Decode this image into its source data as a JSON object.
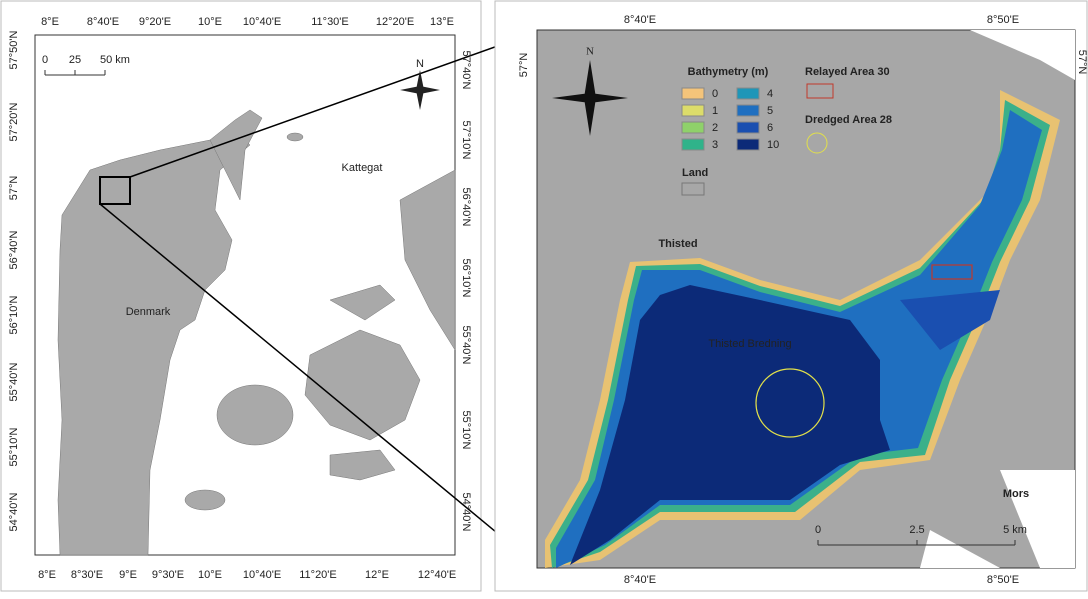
{
  "overview_map": {
    "top_labels": [
      "8°E",
      "8°40'E",
      "9°20'E",
      "10°E",
      "10°40'E",
      "11°30'E",
      "12°20'E",
      "13°E"
    ],
    "bottom_labels": [
      "8°E",
      "8°30'E",
      "9°E",
      "9°30'E",
      "10°E",
      "10°40'E",
      "11°20'E",
      "12°E",
      "12°40'E"
    ],
    "left_labels": [
      "57°50'N",
      "57°20'N",
      "57°N",
      "56°40'N",
      "56°10'N",
      "55°40'N",
      "55°10'N",
      "54°40'N"
    ],
    "right_labels": [
      "57°40'N",
      "57°10'N",
      "56°40'N",
      "56°10'N",
      "55°40'N",
      "55°10'N",
      "54°40'N"
    ],
    "scale_labels": [
      "0",
      "25",
      "50 km"
    ],
    "north": "N",
    "places": [
      "Kattegat",
      "Denmark"
    ]
  },
  "detail_map": {
    "top_labels": [
      "8°40'E",
      "8°50'E"
    ],
    "bottom_labels": [
      "8°40'E",
      "8°50'E"
    ],
    "left_labels": [
      "57°N"
    ],
    "right_labels": [
      "57°N"
    ],
    "legend": {
      "title": "Bathymetry (m)",
      "items": [
        {
          "label": "0",
          "color": "#f4c47a"
        },
        {
          "label": "1",
          "color": "#dcdc6a"
        },
        {
          "label": "2",
          "color": "#8fd16a"
        },
        {
          "label": "3",
          "color": "#2fb38a"
        },
        {
          "label": "4",
          "color": "#1e96b8"
        },
        {
          "label": "5",
          "color": "#1f6fc0"
        },
        {
          "label": "6",
          "color": "#1a4fb0"
        },
        {
          "label": "10",
          "color": "#0c2a78"
        }
      ],
      "land": {
        "label": "Land",
        "color": "#a7a7a7"
      },
      "relayed": {
        "label": "Relayed Area 30",
        "color": "#c0392b"
      },
      "dredged": {
        "label": "Dredged Area 28",
        "color": "#e2e04a"
      }
    },
    "places": [
      "Thisted",
      "Thisted Bredning",
      "Mors"
    ],
    "scale_labels": [
      "0",
      "2.5",
      "5 km"
    ],
    "north": "N"
  }
}
